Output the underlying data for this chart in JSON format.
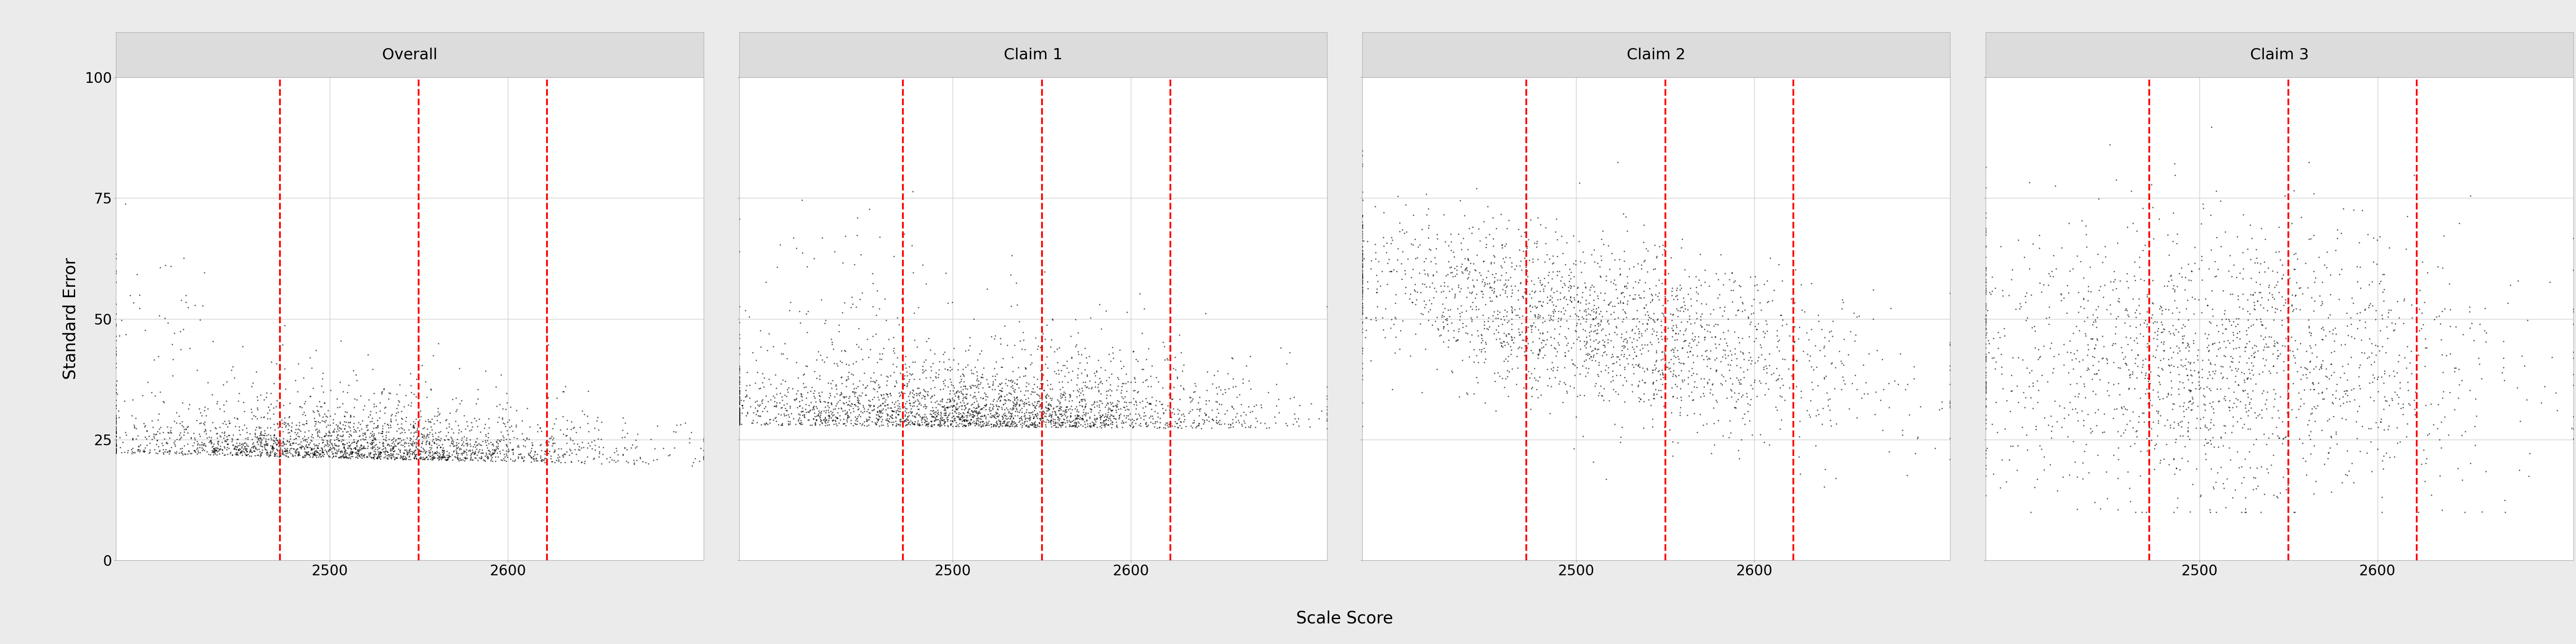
{
  "panels": [
    "Overall",
    "Claim 1",
    "Claim 2",
    "Claim 3"
  ],
  "vlines": [
    2472,
    2550,
    2622
  ],
  "xlim": [
    2380,
    2710
  ],
  "ylim": [
    0,
    100
  ],
  "yticks": [
    0,
    25,
    50,
    75,
    100
  ],
  "xticks": [
    2500,
    2600
  ],
  "xlabel": "Scale Score",
  "ylabel": "Standard Error",
  "vline_color": "#FF0000",
  "dot_color": "black",
  "dot_size": 6,
  "dot_alpha": 0.6,
  "panel_bg": "#ffffff",
  "header_bg": "#DCDCDC",
  "outer_bg": "#EBEBEB",
  "grid_color": "#cccccc",
  "title_fontsize": 26,
  "axis_label_fontsize": 28,
  "tick_fontsize": 24,
  "n_overall": 2500,
  "n_claim1": 2800,
  "n_claim2": 2000,
  "n_claim3": 1800
}
